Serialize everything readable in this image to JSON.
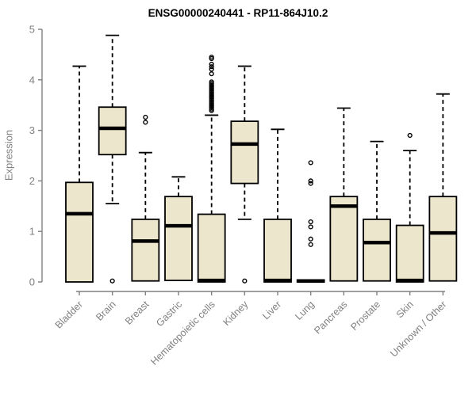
{
  "chart_data": {
    "type": "boxplot",
    "title": "ENSG00000240441 - RP11-864J10.2",
    "ylabel": "Expression",
    "xlabel": "",
    "ylim": [
      0,
      5
    ],
    "yticks": [
      0,
      1,
      2,
      3,
      4,
      5
    ],
    "grid": false,
    "legend": false,
    "categories": [
      "Bladder",
      "Brain",
      "Breast",
      "Gastric",
      "Hematopoietic cells",
      "Kidney",
      "Liver",
      "Lung",
      "Pancreas",
      "Prostate",
      "Skin",
      "Unknown / Other"
    ],
    "series": [
      {
        "name": "Bladder",
        "low": 0,
        "q1": 0,
        "median": 1.35,
        "q3": 1.97,
        "high": 4.27,
        "outliers": []
      },
      {
        "name": "Brain",
        "low": 1.55,
        "q1": 2.52,
        "median": 3.04,
        "q3": 3.46,
        "high": 4.88,
        "outliers": [
          0.02
        ]
      },
      {
        "name": "Breast",
        "low": 0,
        "q1": 0.02,
        "median": 0.81,
        "q3": 1.24,
        "high": 2.56,
        "outliers": [
          3.16,
          3.26
        ]
      },
      {
        "name": "Gastric",
        "low": 0,
        "q1": 0.03,
        "median": 1.11,
        "q3": 1.69,
        "high": 2.08,
        "outliers": []
      },
      {
        "name": "Hematopoietic cells",
        "low": 0,
        "q1": 0,
        "median": 0.03,
        "q3": 1.34,
        "high": 3.3,
        "outliers": [
          3.39,
          3.42,
          3.45,
          3.48,
          3.51,
          3.54,
          3.57,
          3.6,
          3.63,
          3.66,
          3.69,
          3.72,
          3.75,
          3.78,
          3.81,
          3.84,
          3.87,
          3.9,
          3.93,
          3.96,
          4.12,
          4.21,
          4.26,
          4.31,
          4.42,
          4.45
        ]
      },
      {
        "name": "Kidney",
        "low": 1.24,
        "q1": 1.95,
        "median": 2.73,
        "q3": 3.18,
        "high": 4.27,
        "outliers": [
          0.02
        ]
      },
      {
        "name": "Liver",
        "low": 0,
        "q1": 0,
        "median": 0.03,
        "q3": 1.24,
        "high": 3.02,
        "outliers": []
      },
      {
        "name": "Lung",
        "low": 0,
        "q1": 0,
        "median": 0.02,
        "q3": 0.04,
        "high": 0.04,
        "outliers": [
          0.74,
          0.85,
          1.09,
          1.19,
          1.95,
          2.0,
          2.36
        ]
      },
      {
        "name": "Pancreas",
        "low": 0,
        "q1": 0.02,
        "median": 1.5,
        "q3": 1.69,
        "high": 3.44,
        "outliers": []
      },
      {
        "name": "Prostate",
        "low": 0,
        "q1": 0.02,
        "median": 0.78,
        "q3": 1.24,
        "high": 2.78,
        "outliers": []
      },
      {
        "name": "Skin",
        "low": 0,
        "q1": 0,
        "median": 0.03,
        "q3": 1.12,
        "high": 2.6,
        "outliers": [
          2.9
        ]
      },
      {
        "name": "Unknown / Other",
        "low": 0,
        "q1": 0.02,
        "median": 0.97,
        "q3": 1.69,
        "high": 3.72,
        "outliers": []
      }
    ]
  },
  "colors": {
    "box_fill": "#ECE7CC",
    "box_border": "#000000",
    "median": "#000000",
    "whisker": "#000000",
    "axis": "#808080",
    "tick_text": "#808080",
    "title_text": "#000000",
    "background": "#ffffff"
  }
}
